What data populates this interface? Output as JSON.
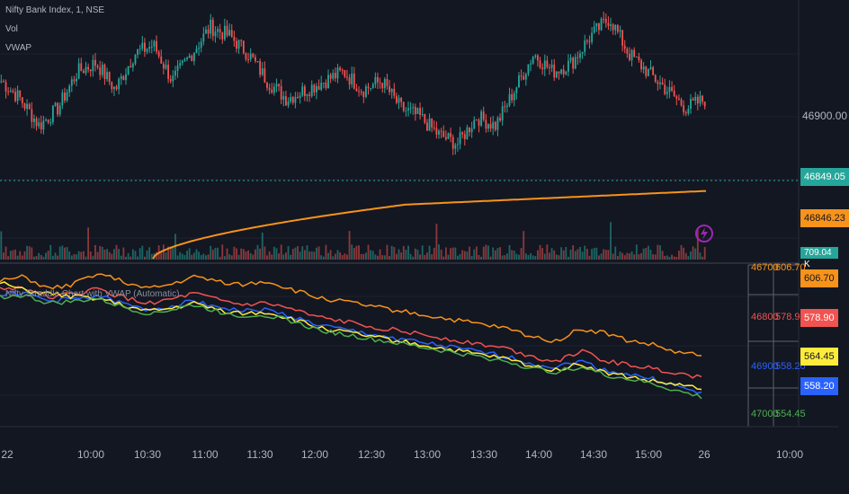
{
  "legend": {
    "symbol": "Nifty Bank Index, 1, NSE",
    "vol": "Vol",
    "vwap": "VWAP",
    "indicator": "Nifty Straddle Chart with VWAP (Automatic)"
  },
  "colors": {
    "bg": "#131722",
    "grid": "#1e2230",
    "up": "#26a69a",
    "down": "#ef5350",
    "vwap": "#f7931a",
    "orange": "#f7931a",
    "red": "#f05350",
    "blue": "#2962ff",
    "yellow": "#ffeb3b",
    "green": "#4caf50"
  },
  "chart_data": [
    {
      "type": "candlestick",
      "name": "Nifty Bank Index, 1, NSE",
      "yticks": [
        "46900.00"
      ],
      "last_price": "46849.05",
      "vwap_value": "46846.23",
      "volume_label": "709.04 K",
      "x_ticks": [
        "22",
        "10:00",
        "10:30",
        "11:00",
        "11:30",
        "12:00",
        "12:30",
        "13:00",
        "13:30",
        "14:00",
        "14:30",
        "15:00",
        "26",
        "10:00"
      ],
      "ylim": [
        46700,
        46940
      ],
      "series_shape": {
        "close_path": [
          46870,
          46850,
          46820,
          46840,
          46880,
          46890,
          46860,
          46900,
          46910,
          46870,
          46900,
          46930,
          46920,
          46900,
          46870,
          46850,
          46860,
          46870,
          46880,
          46860,
          46870,
          46840,
          46830,
          46810,
          46800,
          46830,
          46820,
          46860,
          46900,
          46880,
          46890,
          46920,
          46940,
          46900,
          46880,
          46860,
          46840,
          46849
        ]
      }
    },
    {
      "type": "line",
      "name": "Nifty Straddle Chart with VWAP (Automatic)",
      "table": [
        {
          "strike": "46700",
          "value": "606.70",
          "color": "orange"
        },
        {
          "strike": "46800",
          "value": "578.90",
          "color": "red"
        },
        {
          "strike": "46900",
          "value": "558.20",
          "color": "blue"
        },
        {
          "strike": "47000",
          "value": "554.45",
          "color": "green"
        }
      ],
      "tags": [
        {
          "value": "606.70",
          "color": "orange"
        },
        {
          "value": "578.90",
          "color": "red"
        },
        {
          "value": "564.45",
          "color": "yellow"
        },
        {
          "value": "558.20",
          "color": "blue"
        }
      ],
      "series": [
        {
          "color": "orange",
          "values": [
            700,
            705,
            690,
            695,
            710,
            700,
            690,
            695,
            705,
            700,
            695,
            700,
            690,
            680,
            675,
            670,
            665,
            660,
            655,
            650,
            645,
            640,
            630,
            625,
            640,
            635,
            625,
            620,
            610,
            606.7
          ]
        },
        {
          "color": "red",
          "values": [
            690,
            692,
            680,
            683,
            690,
            680,
            672,
            676,
            684,
            676,
            670,
            672,
            665,
            655,
            650,
            645,
            640,
            635,
            630,
            625,
            620,
            615,
            605,
            600,
            612,
            600,
            595,
            590,
            585,
            578.9
          ]
        },
        {
          "color": "blue",
          "values": [
            683,
            685,
            675,
            677,
            682,
            672,
            664,
            668,
            675,
            668,
            662,
            664,
            656,
            646,
            640,
            635,
            630,
            625,
            620,
            615,
            610,
            605,
            596,
            592,
            600,
            588,
            583,
            577,
            568,
            558.2
          ]
        },
        {
          "color": "yellow",
          "values": [
            698,
            688,
            684,
            680,
            679,
            670,
            662,
            665,
            672,
            664,
            659,
            661,
            653,
            643,
            637,
            632,
            627,
            622,
            617,
            612,
            607,
            602,
            593,
            589,
            596,
            585,
            580,
            574,
            570,
            564.45
          ]
        },
        {
          "color": "green",
          "values": [
            680,
            682,
            672,
            674,
            678,
            668,
            660,
            663,
            670,
            662,
            656,
            658,
            650,
            640,
            634,
            629,
            624,
            619,
            614,
            609,
            604,
            599,
            590,
            586,
            593,
            582,
            577,
            571,
            562,
            554.45
          ]
        }
      ]
    }
  ]
}
